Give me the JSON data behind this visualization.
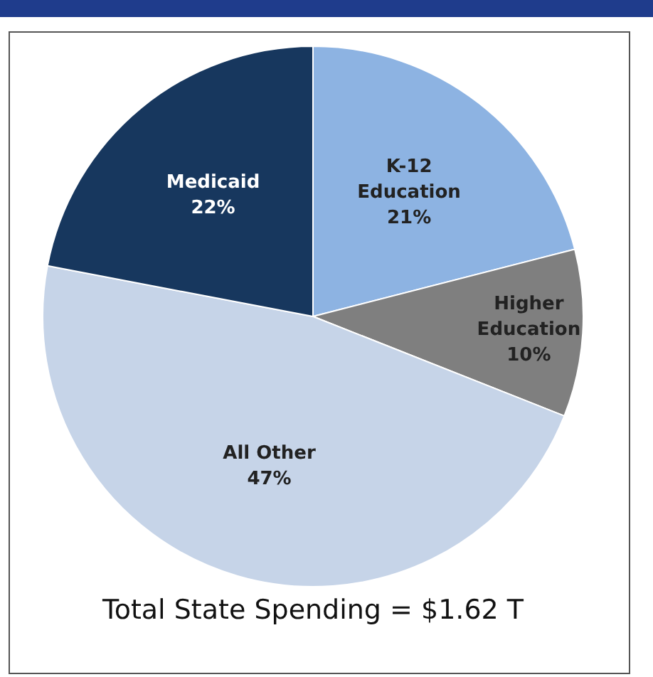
{
  "chart_data": {
    "type": "pie",
    "categories": [
      "K-12 Education",
      "Higher Education",
      "All Other",
      "Medicaid"
    ],
    "values": [
      21,
      10,
      47,
      22
    ],
    "colors": [
      "#8db3e2",
      "#7f7f7f",
      "#c6d4e8",
      "#17375e"
    ],
    "value_labels": [
      "21%",
      "10%",
      "47%",
      "22%"
    ],
    "annotations": [
      "Total State Spending = $1.62 T"
    ]
  }
}
